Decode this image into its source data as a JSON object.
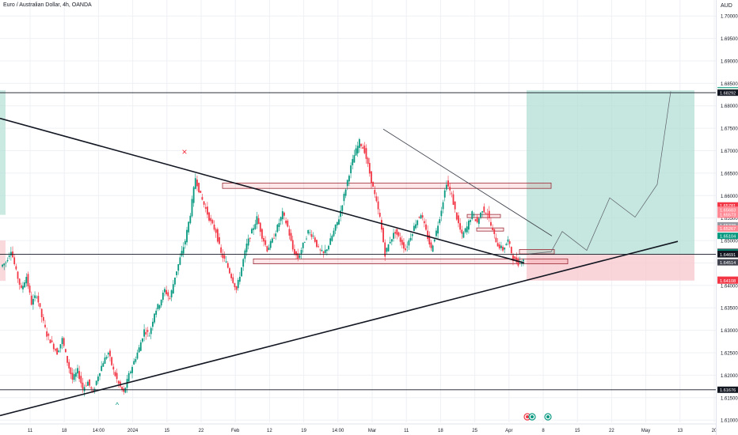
{
  "header": {
    "title": "Euro / Australian Dollar, 4h, OANDA",
    "currency": "AUD"
  },
  "colors": {
    "up": "#089981",
    "down": "#f23645",
    "target_zone": "#b2dfd4",
    "stop_zone": "#f8c9cf",
    "grid": "#eef0f4",
    "trendline": "#131722",
    "ray": "#787b86"
  },
  "chart_data": {
    "type": "candlestick",
    "symbol": "EURAUD",
    "timeframe": "4h",
    "y_ticks": [
      "1.70000",
      "1.69500",
      "1.69000",
      "1.68500",
      "1.68000",
      "1.67500",
      "1.67000",
      "1.66500",
      "1.66000",
      "1.65500",
      "1.65000",
      "1.64500",
      "1.64000",
      "1.63500",
      "1.63000",
      "1.62500",
      "1.62000",
      "1.61500",
      "1.61000"
    ],
    "x_ticks": [
      "11",
      "18",
      "14:00",
      "2024",
      "15",
      "22",
      "Feb",
      "12",
      "19",
      "14:00",
      "Mar",
      "11",
      "18",
      "25",
      "Apr",
      "8",
      "15",
      "22",
      "May",
      "13",
      "20"
    ],
    "ylim": [
      1.6095,
      1.7025
    ],
    "price_labels": [
      {
        "value": "1.68344",
        "color": "#089981",
        "text_color": "#ffffff"
      },
      {
        "value": "1.68326",
        "color": "#e8f5e9",
        "text_color": "#131722"
      },
      {
        "value": "1.68292",
        "color": "#131722",
        "text_color": "#ffffff"
      },
      {
        "value": "1.65781",
        "color": "#f23645",
        "text_color": "#ffffff"
      },
      {
        "value": "1.65683",
        "color": "#ff8a95",
        "text_color": "#ffffff"
      },
      {
        "value": "1.65573",
        "color": "#ff8a95",
        "text_color": "#ffffff"
      },
      {
        "value": "1.65338",
        "color": "#9598a1",
        "text_color": "#ffffff"
      },
      {
        "value": "1.65267",
        "color": "#ff8a95",
        "text_color": "#ffffff"
      },
      {
        "value": "1.65104",
        "color": "#089981",
        "text_color": "#ffffff"
      },
      {
        "value": "1.64746",
        "color": "#131722",
        "text_color": "#ffffff"
      },
      {
        "value": "1.64733",
        "color": "#089981",
        "text_color": "#ffffff"
      },
      {
        "value": "1.64704",
        "color": "#131722",
        "text_color": "#ffffff"
      },
      {
        "value": "1.64691",
        "color": "#131722",
        "text_color": "#ffffff"
      },
      {
        "value": "1.64514",
        "color": "#434651",
        "text_color": "#ffffff"
      },
      {
        "value": "1.64127",
        "color": "#f23645",
        "text_color": "#ffffff"
      },
      {
        "value": "1.64108",
        "color": "#f23645",
        "text_color": "#ffffff"
      },
      {
        "value": "1.61676",
        "color": "#131722",
        "text_color": "#ffffff"
      }
    ],
    "horizontal_levels": [
      1.68292,
      1.64691,
      1.61676
    ],
    "position": {
      "side": "long",
      "entry": 1.64691,
      "target": 1.68344,
      "stop": 1.64108
    },
    "zones": [
      {
        "name": "resistance-zone",
        "top": 1.6628,
        "bottom": 1.6616
      },
      {
        "name": "support-zone",
        "top": 1.6459,
        "bottom": 1.6448
      },
      {
        "name": "small-zone-a",
        "top": 1.6558,
        "bottom": 1.6553
      },
      {
        "name": "small-zone-b",
        "top": 1.6528,
        "bottom": 1.6523
      },
      {
        "name": "small-zone-c",
        "top": 1.648,
        "bottom": 1.647
      }
    ],
    "candles_close_path": [
      1.6452,
      1.648,
      1.643,
      1.639,
      1.642,
      1.636,
      1.638,
      1.633,
      1.629,
      1.627,
      1.625,
      1.628,
      1.623,
      1.619,
      1.621,
      1.617,
      1.6185,
      1.616,
      1.62,
      1.623,
      1.625,
      1.621,
      1.618,
      1.616,
      1.62,
      1.623,
      1.626,
      1.63,
      1.629,
      1.634,
      1.636,
      1.639,
      1.637,
      1.642,
      1.646,
      1.65,
      1.656,
      1.664,
      1.66,
      1.657,
      1.654,
      1.652,
      1.647,
      1.645,
      1.642,
      1.639,
      1.644,
      1.649,
      1.652,
      1.655,
      1.651,
      1.648,
      1.65,
      1.653,
      1.656,
      1.653,
      1.648,
      1.646,
      1.649,
      1.652,
      1.651,
      1.648,
      1.647,
      1.649,
      1.652,
      1.655,
      1.66,
      1.665,
      1.669,
      1.672,
      1.67,
      1.665,
      1.66,
      1.655,
      1.647,
      1.65,
      1.652,
      1.65,
      1.648,
      1.651,
      1.654,
      1.656,
      1.652,
      1.648,
      1.652,
      1.657,
      1.663,
      1.66,
      1.655,
      1.651,
      1.653,
      1.656,
      1.654,
      1.657,
      1.656,
      1.652,
      1.649,
      1.648,
      1.65,
      1.646,
      1.645,
      1.646
    ],
    "projection_path": [
      1.647,
      1.652,
      1.648,
      1.654,
      1.659,
      1.656,
      1.663,
      1.6595,
      1.683
    ],
    "annotations": {
      "x_marker": "×",
      "arrow_marker": "^"
    }
  }
}
